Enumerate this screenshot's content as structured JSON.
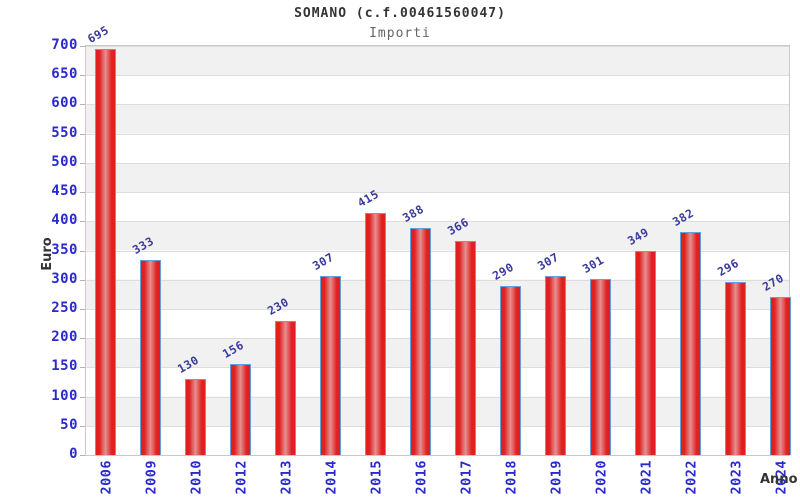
{
  "chart_data": {
    "type": "bar",
    "title": "SOMANO (c.f.00461560047)",
    "subtitle": "Importi",
    "xlabel": "Anno",
    "ylabel": "Euro",
    "categories": [
      "2006",
      "2009",
      "2010",
      "2012",
      "2013",
      "2014",
      "2015",
      "2016",
      "2017",
      "2018",
      "2019",
      "2020",
      "2021",
      "2022",
      "2023",
      "2024"
    ],
    "values": [
      695,
      333,
      130,
      156,
      230,
      307,
      415,
      388,
      366,
      290,
      307,
      301,
      349,
      382,
      296,
      270
    ],
    "ylim": [
      0,
      700
    ],
    "ytick_step": 50,
    "grid": true,
    "legend": "none",
    "band_fill": "alternating horizontal stripes per 50 units",
    "colors": {
      "bar_red": "#e31e1e",
      "bar_center_highlight": "#e59191",
      "bar_border": "#62a1d8",
      "axis_tick_label": "#2a2ace",
      "value_label": "#3a3a9c",
      "title": "#333333",
      "subtitle": "#666666",
      "band_gray": "#f1f1f1",
      "gridline": "#dddddd",
      "plot_border": "#c9c9c9"
    }
  }
}
